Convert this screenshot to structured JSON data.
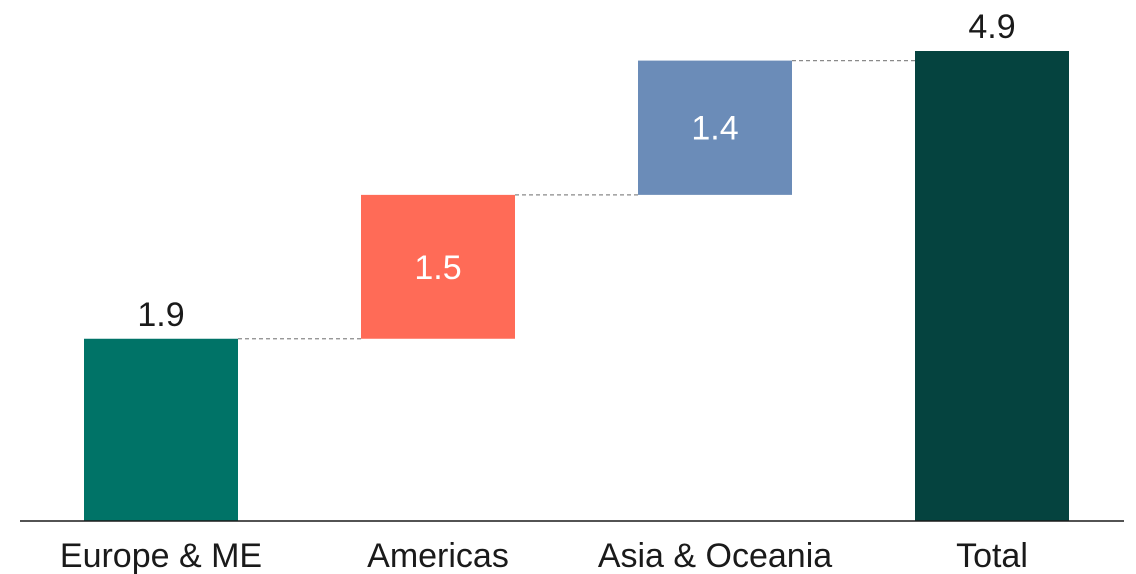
{
  "chart_data": {
    "type": "bar",
    "subtype": "waterfall",
    "categories": [
      "Europe & ME",
      "Americas",
      "Asia & Oceania",
      "Total"
    ],
    "values": [
      1.9,
      1.5,
      1.4,
      4.9
    ],
    "labels": [
      "1.9",
      "1.5",
      "1.4",
      "4.9"
    ],
    "kinds": [
      "start",
      "delta",
      "delta",
      "total"
    ],
    "colors": [
      "#007367",
      "#ff6b57",
      "#6b8cb8",
      "#05433f"
    ],
    "label_colors": [
      "#1a1a1a",
      "#ffffff",
      "#ffffff",
      "#1a1a1a"
    ],
    "label_positions": [
      "above",
      "inside",
      "inside",
      "above"
    ],
    "ylim": [
      0,
      5.1
    ],
    "grid": false,
    "connectors": "dashed",
    "title": "",
    "xlabel": "",
    "ylabel": ""
  }
}
